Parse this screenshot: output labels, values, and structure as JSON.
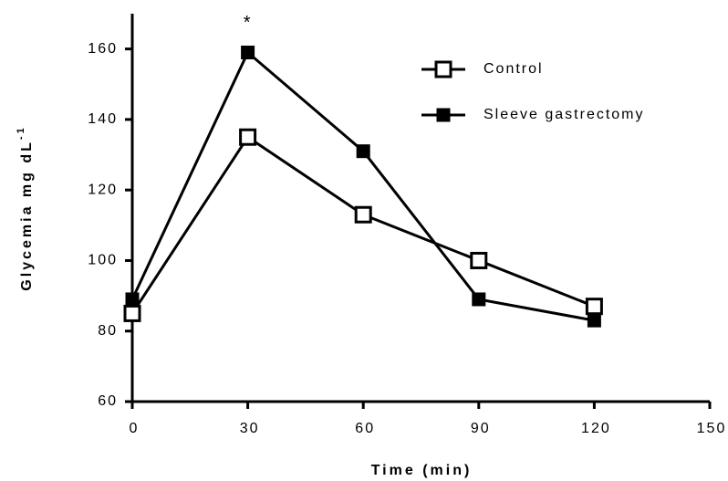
{
  "chart_data": {
    "type": "line",
    "xlabel": "Time (min)",
    "ylabel": "Glycemia mg dL",
    "ylabel_superscript": "-1",
    "annotation": "*",
    "x": [
      0,
      30,
      60,
      90,
      120
    ],
    "series": [
      {
        "name": "Control",
        "color": "#000000",
        "marker": "open-square",
        "values": [
          85,
          135,
          113,
          100,
          87
        ]
      },
      {
        "name": "Sleeve gastrectomy",
        "color": "#000000",
        "marker": "filled-square",
        "values": [
          89,
          159,
          131,
          89,
          83
        ]
      }
    ],
    "xlim": [
      0,
      150
    ],
    "xticks": [
      0,
      30,
      60,
      90,
      120,
      150
    ],
    "ylim": [
      60,
      170
    ],
    "yticks": [
      60,
      80,
      100,
      120,
      140,
      160
    ],
    "grid": false,
    "legend": "top-right"
  }
}
